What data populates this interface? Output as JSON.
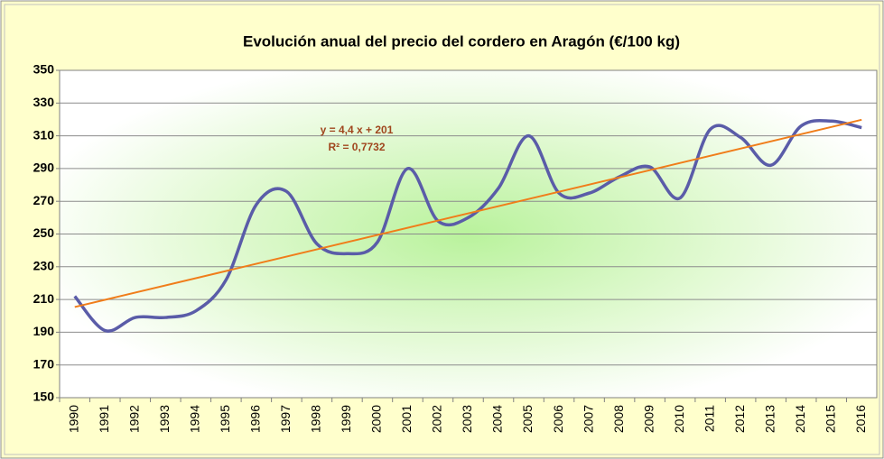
{
  "chart_data": {
    "type": "line",
    "title": "Evolución anual del precio del cordero en Aragón (€/100 kg)",
    "categories": [
      "1990",
      "1991",
      "1992",
      "1993",
      "1994",
      "1995",
      "1996",
      "1997",
      "1998",
      "1999",
      "2000",
      "2001",
      "2002",
      "2003",
      "2004",
      "2005",
      "2006",
      "2007",
      "2008",
      "2009",
      "2010",
      "2011",
      "2012",
      "2013",
      "2014",
      "2015",
      "2016"
    ],
    "series": [
      {
        "color": "#5a5ca8",
        "values": [
          212,
          191,
          199,
          199,
          203,
          222,
          268,
          276,
          244,
          238,
          245,
          290,
          258,
          260,
          278,
          310,
          275,
          275,
          285,
          291,
          272,
          314,
          309,
          292,
          316,
          319,
          315
        ]
      }
    ],
    "trendline": {
      "slope": 4.4,
      "intercept": 201,
      "color": "#f07d1a",
      "equation": "y = 4,4 x + 201",
      "r_squared": "R² = 0,7732"
    },
    "ylim": [
      150,
      350
    ],
    "yticks": [
      150,
      170,
      190,
      210,
      230,
      250,
      270,
      290,
      310,
      330,
      350
    ],
    "grid": true
  }
}
